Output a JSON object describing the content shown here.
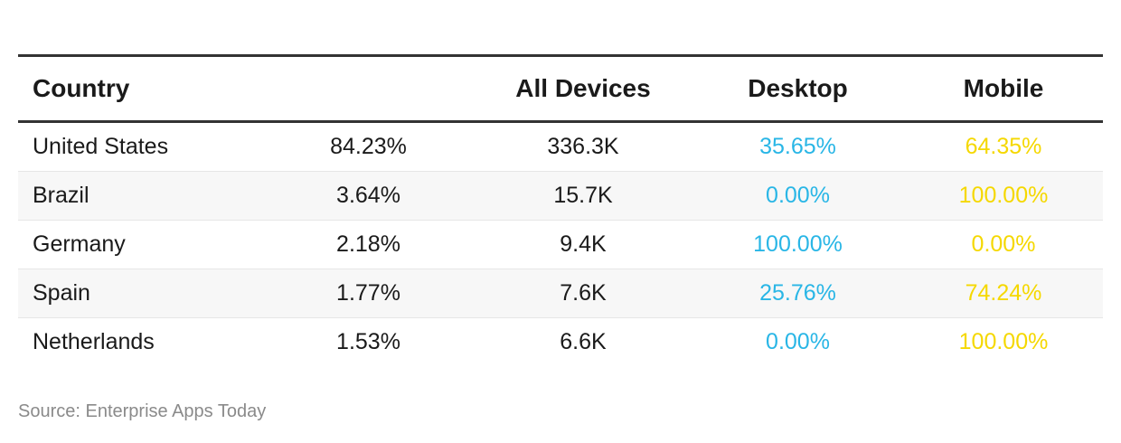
{
  "table": {
    "headers": [
      "Country",
      "",
      "All Devices",
      "Desktop",
      "Mobile"
    ],
    "rows": [
      {
        "country": "United States",
        "share": "84.23%",
        "all_devices": "336.3K",
        "desktop": "35.65%",
        "mobile": "64.35%"
      },
      {
        "country": "Brazil",
        "share": "3.64%",
        "all_devices": "15.7K",
        "desktop": "0.00%",
        "mobile": "100.00%"
      },
      {
        "country": "Germany",
        "share": "2.18%",
        "all_devices": "9.4K",
        "desktop": "100.00%",
        "mobile": "0.00%"
      },
      {
        "country": "Spain",
        "share": "1.77%",
        "all_devices": "7.6K",
        "desktop": "25.76%",
        "mobile": "74.24%"
      },
      {
        "country": "Netherlands",
        "share": "1.53%",
        "all_devices": "6.6K",
        "desktop": "0.00%",
        "mobile": "100.00%"
      }
    ]
  },
  "colors": {
    "desktop": "#29b6e6",
    "mobile": "#f5d800",
    "rule": "#333333"
  },
  "source": "Source: Enterprise Apps Today"
}
